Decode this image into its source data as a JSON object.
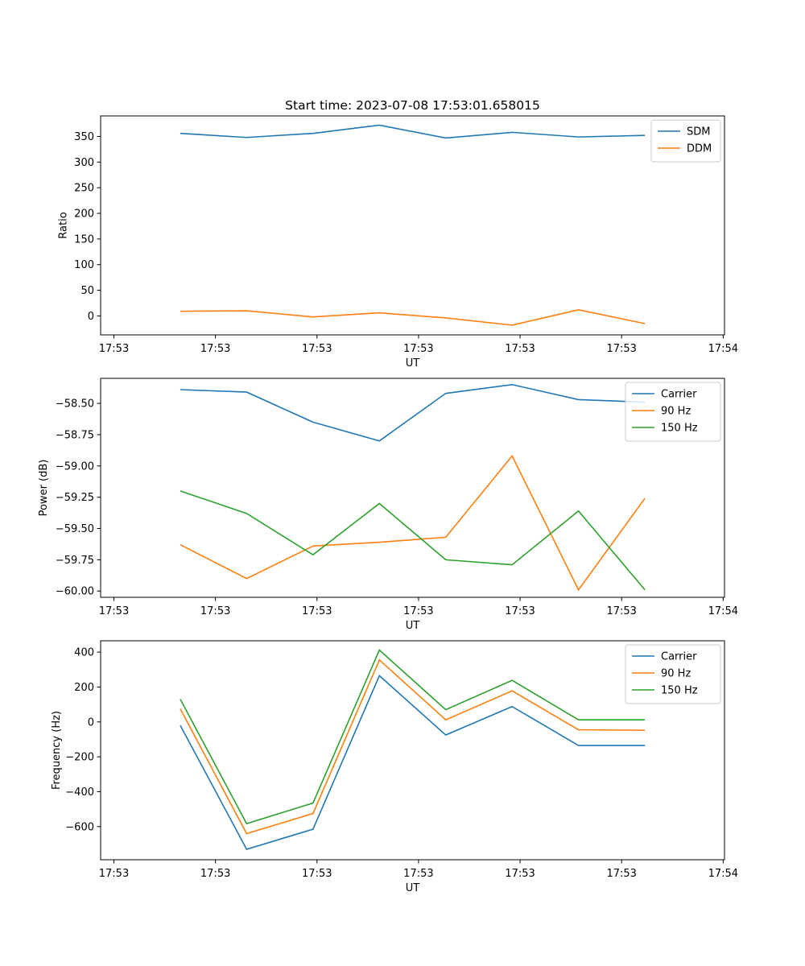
{
  "title": "Start time: 2023-07-08 17:53:01.658015",
  "colors": {
    "blue": "#1f77b4",
    "orange": "#ff7f0e",
    "green": "#2ca02c"
  },
  "chart_data": [
    {
      "type": "line",
      "title": "Start time: 2023-07-08 17:53:01.658015",
      "xlabel": "UT",
      "ylabel": "Ratio",
      "x_index": [
        1,
        2,
        3,
        4,
        5,
        6,
        7,
        8
      ],
      "x_tick_positions": [
        0,
        1.53,
        3.06,
        4.59,
        6.12,
        7.65,
        9.18
      ],
      "x_tick_labels": [
        "17:53",
        "17:53",
        "17:53",
        "17:53",
        "17:53",
        "17:53",
        "17:54"
      ],
      "xlim": [
        -0.2,
        9.2
      ],
      "ylim": [
        -37,
        390
      ],
      "y_ticks": [
        0,
        50,
        100,
        150,
        200,
        250,
        300,
        350
      ],
      "y_tick_labels": [
        "0",
        "50",
        "100",
        "150",
        "200",
        "250",
        "300",
        "350"
      ],
      "legend_position": "top-right",
      "grid": false,
      "series": [
        {
          "name": "SDM",
          "color": "#1f77b4",
          "values": [
            356,
            348,
            356,
            372,
            347,
            358,
            349,
            352
          ]
        },
        {
          "name": "DDM",
          "color": "#ff7f0e",
          "values": [
            9,
            10,
            -2,
            6,
            -4,
            -18,
            12,
            -15
          ]
        }
      ]
    },
    {
      "type": "line",
      "title": "",
      "xlabel": "UT",
      "ylabel": "Power (dB)",
      "x_index": [
        1,
        2,
        3,
        4,
        5,
        6,
        7,
        8
      ],
      "x_tick_positions": [
        0,
        1.53,
        3.06,
        4.59,
        6.12,
        7.65,
        9.18
      ],
      "x_tick_labels": [
        "17:53",
        "17:53",
        "17:53",
        "17:53",
        "17:53",
        "17:53",
        "17:54"
      ],
      "xlim": [
        -0.2,
        9.2
      ],
      "ylim": [
        -60.05,
        -58.3
      ],
      "y_ticks": [
        -60.0,
        -59.75,
        -59.5,
        -59.25,
        -59.0,
        -58.75,
        -58.5
      ],
      "y_tick_labels": [
        "−60.00",
        "−59.75",
        "−59.50",
        "−59.25",
        "−59.00",
        "−58.75",
        "−58.50"
      ],
      "legend_position": "top-right",
      "grid": false,
      "series": [
        {
          "name": "Carrier",
          "color": "#1f77b4",
          "values": [
            -58.39,
            -58.41,
            -58.65,
            -58.8,
            -58.42,
            -58.35,
            -58.47,
            -58.49
          ]
        },
        {
          "name": "90 Hz",
          "color": "#ff7f0e",
          "values": [
            -59.63,
            -59.9,
            -59.64,
            -59.61,
            -59.57,
            -58.92,
            -59.99,
            -59.26
          ]
        },
        {
          "name": "150 Hz",
          "color": "#2ca02c",
          "values": [
            -59.2,
            -59.38,
            -59.71,
            -59.3,
            -59.75,
            -59.79,
            -59.36,
            -59.99
          ]
        }
      ]
    },
    {
      "type": "line",
      "title": "",
      "xlabel": "UT",
      "ylabel": "Frequency (Hz)",
      "x_index": [
        1,
        2,
        3,
        4,
        5,
        6,
        7,
        8
      ],
      "x_tick_positions": [
        0,
        1.53,
        3.06,
        4.59,
        6.12,
        7.65,
        9.18
      ],
      "x_tick_labels": [
        "17:53",
        "17:53",
        "17:53",
        "17:53",
        "17:53",
        "17:53",
        "17:54"
      ],
      "xlim": [
        -0.2,
        9.2
      ],
      "ylim": [
        -790,
        465
      ],
      "y_ticks": [
        -600,
        -400,
        -200,
        0,
        200,
        400
      ],
      "y_tick_labels": [
        "−600",
        "−400",
        "−200",
        "0",
        "200",
        "400"
      ],
      "legend_position": "top-right",
      "grid": false,
      "series": [
        {
          "name": "Carrier",
          "color": "#1f77b4",
          "values": [
            -20,
            -730,
            -615,
            265,
            -75,
            88,
            -135,
            -135
          ]
        },
        {
          "name": "90 Hz",
          "color": "#ff7f0e",
          "values": [
            75,
            -640,
            -525,
            355,
            12,
            178,
            -45,
            -48
          ]
        },
        {
          "name": "150 Hz",
          "color": "#2ca02c",
          "values": [
            130,
            -583,
            -465,
            412,
            70,
            238,
            12,
            12
          ]
        }
      ]
    }
  ]
}
